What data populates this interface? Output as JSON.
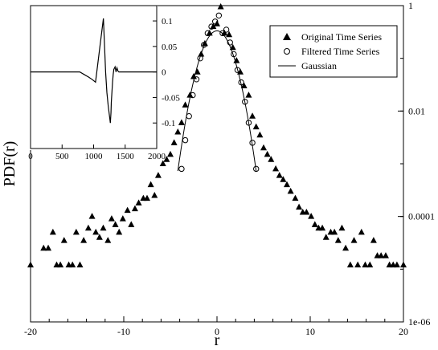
{
  "chart_data": [
    {
      "type": "scatter",
      "xlabel": "r",
      "ylabel": "PDF(r)",
      "xlim": [
        -20,
        20
      ],
      "ylim": [
        1e-06,
        1
      ],
      "yscale": "log",
      "x_ticks": [
        -20,
        -10,
        0,
        10,
        20
      ],
      "x_tick_labels": [
        "-20",
        "-10",
        "0",
        "10",
        "20"
      ],
      "y_ticks": [
        1,
        0.01,
        0.0001,
        1e-06
      ],
      "y_tick_labels": [
        "1",
        "0.01",
        "0.0001",
        "1e-06"
      ],
      "y_axis_side": "right",
      "grid": false,
      "legend_position": "top-right",
      "legend": [
        {
          "label": "Original Time Series",
          "marker": "filled-triangle"
        },
        {
          "label": "Filtered Time Series",
          "marker": "open-circle"
        },
        {
          "label": "Gaussian",
          "marker": "line"
        }
      ],
      "series": [
        {
          "name": "Original Time Series",
          "marker": "filled-triangle",
          "points": [
            [
              -20.0,
              1.2e-05
            ],
            [
              -18.6,
              2.5e-05
            ],
            [
              -18.1,
              2.5e-05
            ],
            [
              -17.6,
              5e-05
            ],
            [
              -17.2,
              1.2e-05
            ],
            [
              -16.8,
              1.2e-05
            ],
            [
              -16.4,
              3.5e-05
            ],
            [
              -15.9,
              1.2e-05
            ],
            [
              -15.5,
              1.2e-05
            ],
            [
              -15.1,
              5e-05
            ],
            [
              -14.7,
              1.2e-05
            ],
            [
              -14.3,
              3.5e-05
            ],
            [
              -13.8,
              6e-05
            ],
            [
              -13.4,
              0.0001
            ],
            [
              -13.0,
              5e-05
            ],
            [
              -12.6,
              4e-05
            ],
            [
              -12.2,
              6e-05
            ],
            [
              -11.7,
              3.5e-05
            ],
            [
              -11.3,
              9e-05
            ],
            [
              -10.9,
              7e-05
            ],
            [
              -10.5,
              5e-05
            ],
            [
              -10.1,
              9e-05
            ],
            [
              -9.6,
              0.00013
            ],
            [
              -9.2,
              7e-05
            ],
            [
              -8.8,
              0.00014
            ],
            [
              -8.4,
              0.00018
            ],
            [
              -7.9,
              0.00022
            ],
            [
              -7.5,
              0.00022
            ],
            [
              -7.1,
              0.0004
            ],
            [
              -6.7,
              0.00025
            ],
            [
              -6.3,
              0.0006
            ],
            [
              -5.8,
              0.001
            ],
            [
              -5.4,
              0.0012
            ],
            [
              -5.0,
              0.0015
            ],
            [
              -4.6,
              0.0025
            ],
            [
              -4.2,
              0.004
            ],
            [
              -3.8,
              0.006
            ],
            [
              -3.4,
              0.013
            ],
            [
              -2.9,
              0.02
            ],
            [
              -2.5,
              0.045
            ],
            [
              -2.1,
              0.055
            ],
            [
              -1.7,
              0.12
            ],
            [
              -1.3,
              0.19
            ],
            [
              -0.8,
              0.3
            ],
            [
              -0.4,
              0.4
            ],
            [
              0.0,
              0.45
            ],
            [
              0.4,
              0.95
            ],
            [
              0.8,
              0.3
            ],
            [
              1.3,
              0.28
            ],
            [
              1.7,
              0.16
            ],
            [
              2.1,
              0.09
            ],
            [
              2.5,
              0.055
            ],
            [
              2.9,
              0.03
            ],
            [
              3.4,
              0.02
            ],
            [
              3.8,
              0.008
            ],
            [
              4.2,
              0.005
            ],
            [
              4.6,
              0.0035
            ],
            [
              5.0,
              0.002
            ],
            [
              5.4,
              0.0015
            ],
            [
              5.8,
              0.0012
            ],
            [
              6.3,
              0.0008
            ],
            [
              6.7,
              0.0006
            ],
            [
              7.1,
              0.0005
            ],
            [
              7.5,
              0.0004
            ],
            [
              7.9,
              0.0003
            ],
            [
              8.4,
              0.00022
            ],
            [
              8.8,
              0.00015
            ],
            [
              9.2,
              0.00012
            ],
            [
              9.6,
              0.00012
            ],
            [
              10.1,
              0.0001
            ],
            [
              10.5,
              7e-05
            ],
            [
              10.9,
              6e-05
            ],
            [
              11.3,
              6e-05
            ],
            [
              11.7,
              4e-05
            ],
            [
              12.2,
              5e-05
            ],
            [
              12.6,
              5e-05
            ],
            [
              13.0,
              3.5e-05
            ],
            [
              13.4,
              6e-05
            ],
            [
              13.8,
              2.5e-05
            ],
            [
              14.3,
              1.2e-05
            ],
            [
              14.7,
              3.5e-05
            ],
            [
              15.1,
              1.2e-05
            ],
            [
              15.5,
              5e-05
            ],
            [
              15.9,
              1.2e-05
            ],
            [
              16.4,
              1.2e-05
            ],
            [
              16.8,
              3.5e-05
            ],
            [
              17.2,
              1.8e-05
            ],
            [
              17.6,
              1.8e-05
            ],
            [
              18.1,
              1.8e-05
            ],
            [
              18.5,
              1.2e-05
            ],
            [
              18.9,
              1.2e-05
            ],
            [
              19.3,
              1.2e-05
            ],
            [
              20.0,
              1.2e-05
            ]
          ]
        },
        {
          "name": "Filtered Time Series",
          "marker": "open-circle",
          "points": [
            [
              -3.8,
              0.0008
            ],
            [
              -3.4,
              0.0028
            ],
            [
              -3.0,
              0.008
            ],
            [
              -2.6,
              0.02
            ],
            [
              -2.2,
              0.04
            ],
            [
              -1.8,
              0.1
            ],
            [
              -1.4,
              0.18
            ],
            [
              -1.0,
              0.3
            ],
            [
              -0.6,
              0.4
            ],
            [
              -0.2,
              0.5
            ],
            [
              0.2,
              0.65
            ],
            [
              0.6,
              0.3
            ],
            [
              1.0,
              0.35
            ],
            [
              1.4,
              0.2
            ],
            [
              1.8,
              0.12
            ],
            [
              2.2,
              0.06
            ],
            [
              2.6,
              0.035
            ],
            [
              3.0,
              0.015
            ],
            [
              3.4,
              0.006
            ],
            [
              3.8,
              0.0025
            ],
            [
              4.2,
              0.0008
            ]
          ]
        },
        {
          "name": "Gaussian",
          "marker": "line",
          "mean": 0,
          "std_dev": 1.2,
          "x_range": [
            -4.2,
            4.2
          ]
        }
      ]
    },
    {
      "type": "line",
      "position": "inset-top-left",
      "xlim": [
        0,
        2000
      ],
      "ylim": [
        -0.15,
        0.13
      ],
      "x_ticks": [
        0,
        500,
        1000,
        1500,
        2000
      ],
      "x_tick_labels": [
        "0",
        "500",
        "1000",
        "1500",
        "2000"
      ],
      "y_ticks": [
        0.1,
        0.05,
        0,
        -0.05,
        -0.1
      ],
      "y_tick_labels": [
        "0.1",
        "0.05",
        "0",
        "-0.05",
        "-0.1"
      ],
      "y_axis_side": "right",
      "series": [
        {
          "points": [
            [
              0,
              0
            ],
            [
              780,
              0
            ],
            [
              850,
              -0.005
            ],
            [
              920,
              -0.01
            ],
            [
              980,
              -0.015
            ],
            [
              1030,
              -0.02
            ],
            [
              1040,
              -0.01
            ],
            [
              1060,
              0.01
            ],
            [
              1080,
              0.03
            ],
            [
              1100,
              0.05
            ],
            [
              1120,
              0.07
            ],
            [
              1140,
              0.09
            ],
            [
              1155,
              0.105
            ],
            [
              1160,
              0.09
            ],
            [
              1170,
              0.06
            ],
            [
              1180,
              0.03
            ],
            [
              1190,
              0.0
            ],
            [
              1200,
              -0.02
            ],
            [
              1210,
              -0.04
            ],
            [
              1230,
              -0.065
            ],
            [
              1250,
              -0.085
            ],
            [
              1260,
              -0.095
            ],
            [
              1265,
              -0.1
            ],
            [
              1270,
              -0.09
            ],
            [
              1275,
              -0.08
            ],
            [
              1280,
              -0.06
            ],
            [
              1290,
              -0.04
            ],
            [
              1300,
              -0.02
            ],
            [
              1310,
              -0.005
            ],
            [
              1320,
              0.005
            ],
            [
              1340,
              0.01
            ],
            [
              1355,
              0.0
            ],
            [
              1370,
              0.008
            ],
            [
              1385,
              0.002
            ],
            [
              1400,
              0.0
            ],
            [
              1450,
              0.0
            ],
            [
              2000,
              0.0
            ]
          ]
        }
      ]
    }
  ]
}
